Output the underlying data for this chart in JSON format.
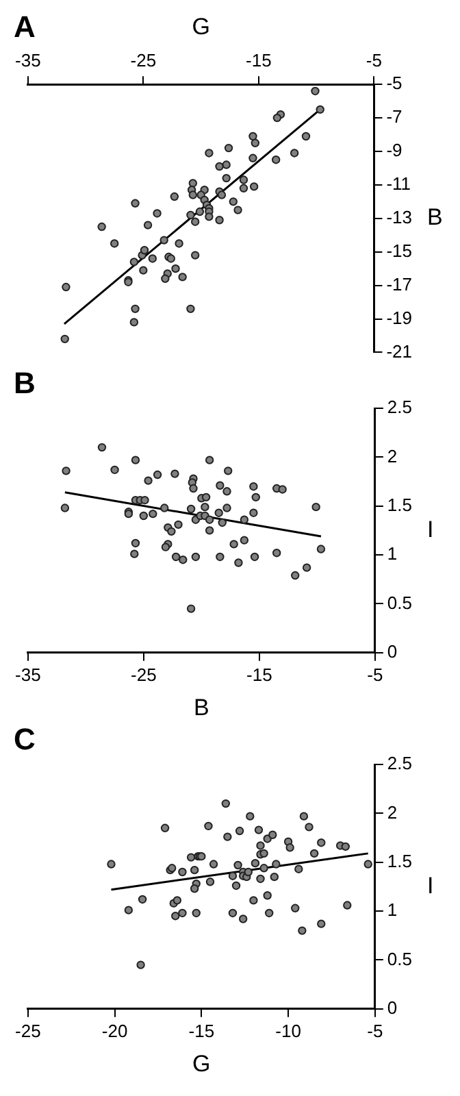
{
  "chart_data": [
    {
      "type": "scatter",
      "title": "A",
      "xlabel": "G",
      "ylabel": "B",
      "xlim": [
        -35,
        -5
      ],
      "xticks": [
        -35,
        -25,
        -15,
        -5
      ],
      "ylim": [
        -21,
        -5
      ],
      "yticks": [
        -21,
        -19,
        -17,
        -15,
        -13,
        -11,
        -9,
        -7,
        -5
      ],
      "grid": false,
      "series": [
        {
          "color": "#808080",
          "marker": "circle",
          "x": [
            -10.1,
            -9.67,
            -13.1,
            -13.4,
            -15.5,
            -15.3,
            -10.9,
            -11.9,
            -13.5,
            -15.5,
            -17.6,
            -19.3,
            -17.8,
            -18.4,
            -16.3,
            -16.3,
            -15.4,
            -17.8,
            -20.7,
            -20.8,
            -20.7,
            -19.7,
            -20.0,
            -18.4,
            -18.2,
            -19.7,
            -19.5,
            -19.3,
            -20.1,
            -19.3,
            -19.3,
            -20.9,
            -20.5,
            -18.4,
            -17.2,
            -16.8,
            -22.3,
            -23.8,
            -25.7,
            -24.6,
            -28.6,
            -27.5,
            -23.2,
            -21.9,
            -20.5,
            -25.1,
            -24.9,
            -24.2,
            -25.8,
            -22.8,
            -22.6,
            -25.0,
            -22.2,
            -22.9,
            -23.1,
            -21.6,
            -26.3,
            -26.3,
            -31.7,
            -25.7,
            -25.8,
            -20.9,
            -31.8
          ],
          "values": [
            -5.4,
            -6.5,
            -6.8,
            -7.0,
            -8.1,
            -8.5,
            -8.1,
            -9.1,
            -9.5,
            -9.4,
            -8.8,
            -9.1,
            -9.8,
            -9.9,
            -10.7,
            -11.2,
            -11.1,
            -10.6,
            -10.9,
            -11.3,
            -11.6,
            -11.3,
            -11.6,
            -11.4,
            -11.6,
            -11.9,
            -12.2,
            -12.4,
            -12.6,
            -12.6,
            -12.9,
            -12.8,
            -13.2,
            -13.1,
            -12.0,
            -12.5,
            -11.7,
            -12.7,
            -12.1,
            -13.4,
            -13.5,
            -14.5,
            -14.3,
            -14.5,
            -15.2,
            -15.2,
            -14.9,
            -15.4,
            -15.6,
            -15.3,
            -15.4,
            -16.1,
            -16.0,
            -16.3,
            -16.6,
            -16.5,
            -16.7,
            -16.8,
            -17.1,
            -18.4,
            -19.2,
            -18.4,
            -20.2
          ]
        },
        {
          "type": "line",
          "color": "#000000",
          "marker": "none",
          "line_style": "solid",
          "x": [
            -31.85,
            -9.67
          ],
          "values": [
            -19.3,
            -6.5
          ]
        }
      ]
    },
    {
      "type": "scatter",
      "title": "B",
      "xlabel": "B",
      "ylabel": "I",
      "xlim": [
        -35,
        -5
      ],
      "xticks": [
        -35,
        -25,
        -15,
        -5
      ],
      "ylim": [
        0,
        2.5
      ],
      "yticks": [
        0,
        0.5,
        1,
        1.5,
        2,
        2.5
      ],
      "grid": false,
      "series": [
        {
          "color": "#808080",
          "marker": "circle",
          "x": [
            -31.7,
            -31.8,
            -28.6,
            -27.5,
            -25.7,
            -26.3,
            -26.3,
            -25.7,
            -25.3,
            -24.9,
            -25.0,
            -24.6,
            -23.8,
            -24.2,
            -25.7,
            -25.8,
            -23.2,
            -22.3,
            -22.9,
            -22.6,
            -22.0,
            -22.9,
            -23.1,
            -22.2,
            -21.6,
            -20.7,
            -20.8,
            -20.7,
            -20.9,
            -20.5,
            -20.5,
            -20.9,
            -20.0,
            -19.6,
            -19.7,
            -20.1,
            -19.7,
            -19.3,
            -19.3,
            -19.3,
            -18.4,
            -17.8,
            -17.7,
            -18.5,
            -17.8,
            -18.2,
            -18.4,
            -17.2,
            -16.8,
            -16.3,
            -16.3,
            -15.5,
            -15.3,
            -15.5,
            -15.4,
            -13.5,
            -13.0,
            -13.5,
            -11.9,
            -10.9,
            -10.1,
            -9.67
          ],
          "values": [
            1.86,
            1.48,
            2.1,
            1.87,
            1.97,
            1.44,
            1.42,
            1.56,
            1.56,
            1.56,
            1.4,
            1.76,
            1.82,
            1.42,
            1.12,
            1.01,
            1.48,
            1.83,
            1.28,
            1.24,
            1.31,
            1.11,
            1.08,
            0.98,
            0.95,
            1.78,
            1.74,
            1.68,
            1.47,
            1.36,
            0.98,
            0.45,
            1.58,
            1.59,
            1.49,
            1.4,
            1.4,
            1.36,
            1.25,
            1.97,
            1.71,
            1.65,
            1.86,
            1.43,
            1.48,
            1.33,
            0.98,
            1.11,
            0.92,
            1.36,
            1.15,
            1.7,
            1.59,
            1.43,
            0.98,
            1.68,
            1.67,
            1.02,
            0.79,
            0.87,
            1.49,
            1.06
          ]
        },
        {
          "type": "line",
          "color": "#000000",
          "marker": "none",
          "line_style": "solid",
          "x": [
            -31.8,
            -9.67
          ],
          "values": [
            1.64,
            1.19
          ]
        }
      ]
    },
    {
      "type": "scatter",
      "title": "C",
      "xlabel": "G",
      "ylabel": "I",
      "xlim": [
        -25,
        -5
      ],
      "xticks": [
        -25,
        -20,
        -15,
        -10,
        -5
      ],
      "ylim": [
        0,
        2.5
      ],
      "yticks": [
        0,
        0.5,
        1,
        1.5,
        2,
        2.5
      ],
      "grid": false,
      "series": [
        {
          "color": "#808080",
          "marker": "circle",
          "x": [
            -20.2,
            -19.2,
            -18.4,
            -18.5,
            -17.1,
            -16.8,
            -16.7,
            -16.6,
            -16.4,
            -16.5,
            -16.1,
            -16.1,
            -15.6,
            -15.2,
            -15.1,
            -15.0,
            -15.4,
            -15.3,
            -15.4,
            -15.3,
            -14.6,
            -14.3,
            -14.5,
            -13.6,
            -13.5,
            -12.8,
            -13.2,
            -12.9,
            -13.0,
            -13.2,
            -12.6,
            -12.2,
            -12.6,
            -12.6,
            -12.4,
            -12.3,
            -11.9,
            -12.0,
            -11.7,
            -11.6,
            -11.6,
            -11.4,
            -11.6,
            -11.4,
            -11.2,
            -10.9,
            -10.7,
            -10.8,
            -11.2,
            -11.1,
            -10.0,
            -9.9,
            -9.6,
            -9.4,
            -9.1,
            -8.8,
            -9.2,
            -8.5,
            -8.1,
            -8.1,
            -7.0,
            -6.7,
            -6.6,
            -5.4
          ],
          "values": [
            1.48,
            1.01,
            1.12,
            0.45,
            1.85,
            1.42,
            1.44,
            1.08,
            1.11,
            0.95,
            1.4,
            0.98,
            1.55,
            1.56,
            1.56,
            1.56,
            1.42,
            1.28,
            1.23,
            0.98,
            1.87,
            1.48,
            1.3,
            2.1,
            1.76,
            1.82,
            1.36,
            1.47,
            1.26,
            0.98,
            0.92,
            1.97,
            1.4,
            1.36,
            1.35,
            1.4,
            1.49,
            1.11,
            1.83,
            1.67,
            1.58,
            1.59,
            1.33,
            1.44,
            1.74,
            1.78,
            1.48,
            1.35,
            1.16,
            0.98,
            1.71,
            1.65,
            1.03,
            1.43,
            1.97,
            1.86,
            0.8,
            1.59,
            1.7,
            0.87,
            1.67,
            1.66,
            1.06,
            1.48
          ]
        },
        {
          "type": "line",
          "color": "#000000",
          "marker": "none",
          "line_style": "solid",
          "x": [
            -20.2,
            -5.4
          ],
          "values": [
            1.22,
            1.59
          ]
        }
      ]
    }
  ]
}
